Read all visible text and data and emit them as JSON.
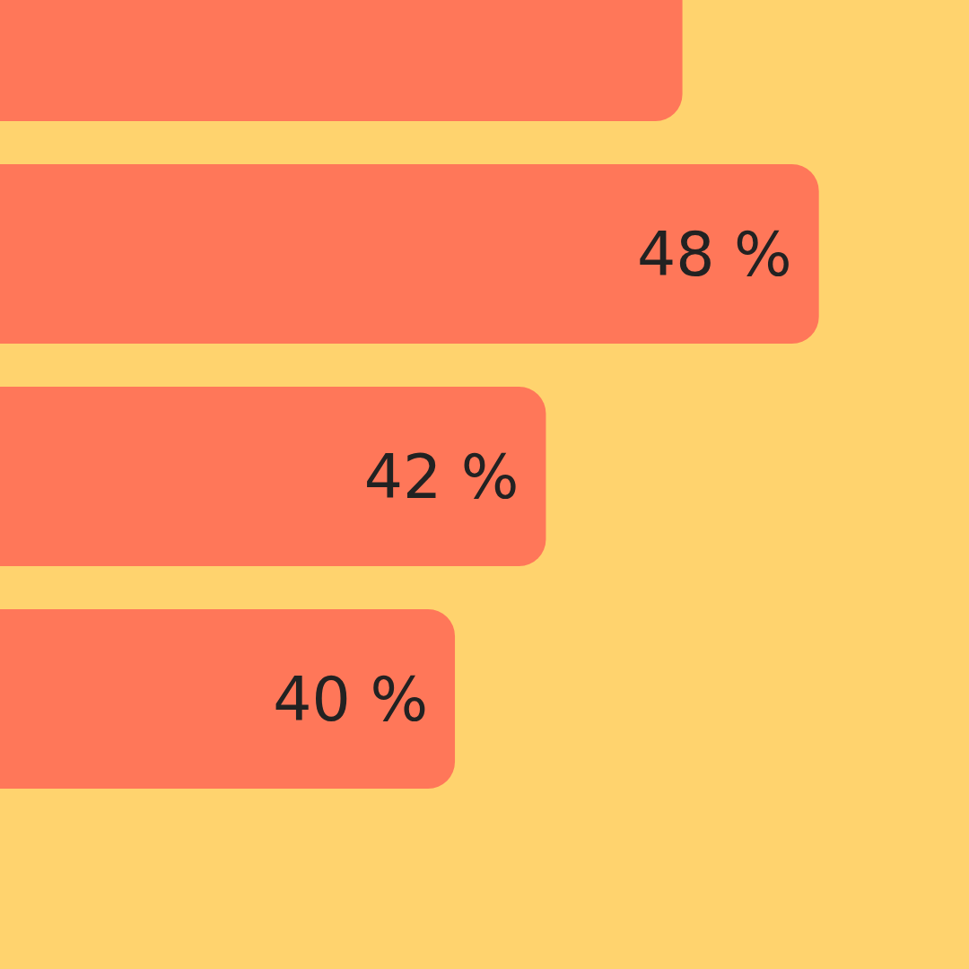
{
  "chart_data": {
    "type": "bar",
    "orientation": "horizontal",
    "categories": [
      null,
      null,
      null,
      null
    ],
    "values": [
      45,
      48,
      42,
      40
    ],
    "value_labels": [
      null,
      "48 %",
      "42 %",
      "40 %"
    ],
    "color": "#ff7759",
    "xlim": [
      30,
      51.3
    ]
  }
}
